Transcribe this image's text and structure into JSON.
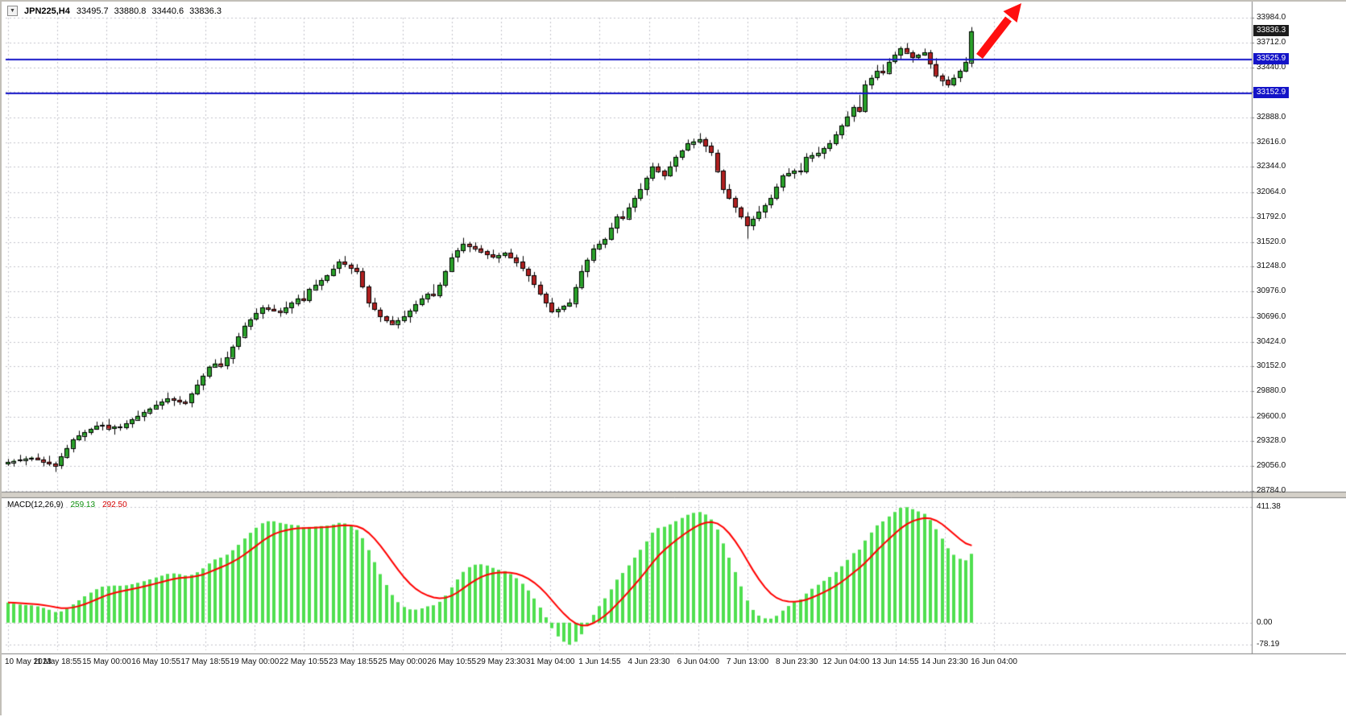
{
  "symbol_info": {
    "dropdown_icon": "▼",
    "symbol": "JPN225,H4",
    "open": "33495.7",
    "high": "33880.8",
    "low": "33440.6",
    "close": "33836.3"
  },
  "indicator_info": {
    "label": "MACD(12,26,9)",
    "main_value": "259.13",
    "signal_value": "292.50"
  },
  "price_axis": {
    "badges": [
      {
        "label": "33836.3",
        "price": 33836.3,
        "bg": "#1c1c1c",
        "name": "current-price-badge"
      },
      {
        "label": "33525.9",
        "price": 33525.9,
        "bg": "#1414c8",
        "name": "resistance-price-badge"
      },
      {
        "label": "33152.9",
        "price": 33152.9,
        "bg": "#1414c8",
        "name": "support-price-badge"
      }
    ]
  },
  "colors": {
    "bull": "#2aa12a",
    "bear": "#b02020",
    "wick": "#000000",
    "grid": "#c4c4cc",
    "hline": "#1414c8",
    "macd_bar": "#4fdf4f",
    "macd_signal": "#ff0000",
    "arrow": "#ff0f0f",
    "separator": "#d4d0c8",
    "border": "#808080"
  },
  "chart_data": {
    "type": "candlestick",
    "symbol": "JPN225",
    "timeframe": "H4",
    "title": "JPN225 H4 with MACD(12,26,9)",
    "current_ohlc": {
      "open": 33495.7,
      "high": 33880.8,
      "low": 33440.6,
      "close": 33836.3
    },
    "y_range": [
      28784,
      33984
    ],
    "y_ticks": [
      33984,
      33712,
      33440,
      33168,
      32888,
      32616,
      32344,
      32064,
      31792,
      31520,
      31248,
      30976,
      30696,
      30424,
      30152,
      29880,
      29600,
      29328,
      29056,
      28784
    ],
    "x_labels": [
      "10 May 2023",
      "11 May 18:55",
      "15 May 00:00",
      "16 May 10:55",
      "17 May 18:55",
      "19 May 00:00",
      "22 May 10:55",
      "23 May 18:55",
      "25 May 00:00",
      "26 May 10:55",
      "29 May 23:30",
      "31 May 04:00",
      "1 Jun 14:55",
      "4 Jun 23:30",
      "6 Jun 04:00",
      "7 Jun 13:00",
      "8 Jun 23:30",
      "12 Jun 04:00",
      "13 Jun 14:55",
      "14 Jun 23:30",
      "16 Jun 04:00"
    ],
    "hlines": [
      {
        "price": 33525.9,
        "color": "#1414c8"
      },
      {
        "price": 33152.9,
        "color": "#1414c8"
      }
    ],
    "ohlc": [
      [
        29080,
        29135,
        29058,
        29100
      ],
      [
        29100,
        29133,
        29052,
        29115
      ],
      [
        29115,
        29180,
        29100,
        29125
      ],
      [
        29125,
        29165,
        29065,
        29140
      ],
      [
        29140,
        29162,
        29110,
        29150
      ],
      [
        29150,
        29195,
        29120,
        29130
      ],
      [
        29130,
        29160,
        29053,
        29105
      ],
      [
        29105,
        29170,
        29057,
        29085
      ],
      [
        29085,
        29105,
        28992,
        29060
      ],
      [
        29060,
        29200,
        29025,
        29160
      ],
      [
        29160,
        29290,
        29138,
        29255
      ],
      [
        29255,
        29368,
        29207,
        29350
      ],
      [
        29350,
        29445,
        29335,
        29390
      ],
      [
        29390,
        29455,
        29330,
        29430
      ],
      [
        29430,
        29477,
        29400,
        29465
      ],
      [
        29465,
        29545,
        29455,
        29500
      ],
      [
        29500,
        29540,
        29448,
        29510
      ],
      [
        29510,
        29575,
        29442,
        29470
      ],
      [
        29470,
        29510,
        29402,
        29490
      ],
      [
        29490,
        29520,
        29445,
        29480
      ],
      [
        29480,
        29560,
        29458,
        29525
      ],
      [
        29525,
        29588,
        29477,
        29570
      ],
      [
        29570,
        29665,
        29555,
        29610
      ],
      [
        29610,
        29675,
        29550,
        29650
      ],
      [
        29650,
        29702,
        29620,
        29690
      ],
      [
        29690,
        29775,
        29680,
        29730
      ],
      [
        29730,
        29795,
        29678,
        29765
      ],
      [
        29765,
        29865,
        29737,
        29800
      ],
      [
        29800,
        29820,
        29717,
        29785
      ],
      [
        29785,
        29825,
        29730,
        29765
      ],
      [
        29765,
        29785,
        29728,
        29750
      ],
      [
        29750,
        29868,
        29702,
        29850
      ],
      [
        29850,
        30005,
        29835,
        29950
      ],
      [
        29950,
        30075,
        29890,
        30050
      ],
      [
        30050,
        30162,
        30020,
        30150
      ],
      [
        30150,
        30230,
        30140,
        30185
      ],
      [
        30185,
        30245,
        30133,
        30160
      ],
      [
        30160,
        30315,
        30120,
        30250
      ],
      [
        30250,
        30390,
        30182,
        30370
      ],
      [
        30370,
        30520,
        30335,
        30480
      ],
      [
        30480,
        30635,
        30458,
        30600
      ],
      [
        30600,
        30688,
        30552,
        30670
      ],
      [
        30670,
        30790,
        30655,
        30735
      ],
      [
        30735,
        30825,
        30675,
        30800
      ],
      [
        30800,
        30832,
        30755,
        30785
      ],
      [
        30785,
        30830,
        30755,
        30765
      ],
      [
        30765,
        30795,
        30698,
        30750
      ],
      [
        30750,
        30865,
        30722,
        30800
      ],
      [
        30800,
        30870,
        30732,
        30850
      ],
      [
        30850,
        30940,
        30815,
        30900
      ],
      [
        30900,
        30985,
        30855,
        30880
      ],
      [
        30880,
        31018,
        30852,
        31000
      ],
      [
        31000,
        31105,
        30985,
        31050
      ],
      [
        31050,
        31125,
        30990,
        31100
      ],
      [
        31100,
        31162,
        31070,
        31150
      ],
      [
        31150,
        31270,
        31140,
        31225
      ],
      [
        31225,
        31330,
        31173,
        31300
      ],
      [
        31300,
        31365,
        31242,
        31270
      ],
      [
        31270,
        31290,
        31167,
        31235
      ],
      [
        31235,
        31275,
        31165,
        31200
      ],
      [
        31200,
        31235,
        31008,
        31030
      ],
      [
        31030,
        31048,
        30802,
        30850
      ],
      [
        30850,
        30905,
        30760,
        30775
      ],
      [
        30775,
        30800,
        30640,
        30700
      ],
      [
        30700,
        30712,
        30630,
        30660
      ],
      [
        30660,
        30705,
        30610,
        30620
      ],
      [
        30620,
        30690,
        30568,
        30660
      ],
      [
        30660,
        30765,
        30632,
        30700
      ],
      [
        30700,
        30785,
        30632,
        30765
      ],
      [
        30765,
        30875,
        30730,
        30835
      ],
      [
        30835,
        30935,
        30813,
        30900
      ],
      [
        30900,
        30968,
        30852,
        30950
      ],
      [
        30950,
        31055,
        30915,
        30935
      ],
      [
        30935,
        31075,
        30905,
        31050
      ],
      [
        31050,
        31212,
        31020,
        31200
      ],
      [
        31200,
        31395,
        31190,
        31350
      ],
      [
        31350,
        31455,
        31298,
        31425
      ],
      [
        31425,
        31565,
        31397,
        31500
      ],
      [
        31500,
        31520,
        31407,
        31475
      ],
      [
        31475,
        31515,
        31415,
        31450
      ],
      [
        31450,
        31485,
        31393,
        31415
      ],
      [
        31415,
        31433,
        31332,
        31380
      ],
      [
        31380,
        31435,
        31335,
        31350
      ],
      [
        31350,
        31400,
        31290,
        31375
      ],
      [
        31375,
        31412,
        31345,
        31400
      ],
      [
        31400,
        31445,
        31340,
        31350
      ],
      [
        31350,
        31380,
        31248,
        31300
      ],
      [
        31300,
        31365,
        31197,
        31225
      ],
      [
        31225,
        31245,
        31082,
        31150
      ],
      [
        31150,
        31190,
        31015,
        31050
      ],
      [
        31050,
        31085,
        30928,
        30950
      ],
      [
        30950,
        30968,
        30802,
        30850
      ],
      [
        30850,
        30905,
        30735,
        30750
      ],
      [
        30750,
        30805,
        30690,
        30780
      ],
      [
        30780,
        30827,
        30750,
        30815
      ],
      [
        30815,
        30895,
        30805,
        30850
      ],
      [
        30850,
        31055,
        30798,
        31025
      ],
      [
        31025,
        31265,
        30997,
        31200
      ],
      [
        31200,
        31345,
        31132,
        31325
      ],
      [
        31325,
        31490,
        31290,
        31450
      ],
      [
        31450,
        31535,
        31428,
        31500
      ],
      [
        31500,
        31568,
        31452,
        31550
      ],
      [
        31550,
        31730,
        31535,
        31675
      ],
      [
        31675,
        31825,
        31615,
        31800
      ],
      [
        31800,
        31862,
        31755,
        31780
      ],
      [
        31780,
        31945,
        31760,
        31900
      ],
      [
        31900,
        32030,
        31848,
        32000
      ],
      [
        32000,
        32165,
        31972,
        32100
      ],
      [
        32100,
        32245,
        32032,
        32225
      ],
      [
        32225,
        32390,
        32190,
        32350
      ],
      [
        32350,
        32385,
        32278,
        32300
      ],
      [
        32300,
        32318,
        32202,
        32250
      ],
      [
        32250,
        32405,
        32235,
        32350
      ],
      [
        32350,
        32475,
        32290,
        32450
      ],
      [
        32450,
        32537,
        32420,
        32525
      ],
      [
        32525,
        32645,
        32515,
        32600
      ],
      [
        32600,
        32655,
        32548,
        32625
      ],
      [
        32625,
        32715,
        32597,
        32650
      ],
      [
        32650,
        32670,
        32507,
        32575
      ],
      [
        32575,
        32615,
        32465,
        32500
      ],
      [
        32500,
        32535,
        32278,
        32300
      ],
      [
        32300,
        32318,
        32052,
        32100
      ],
      [
        32100,
        32155,
        31985,
        32000
      ],
      [
        32000,
        32025,
        31840,
        31900
      ],
      [
        31900,
        31912,
        31770,
        31800
      ],
      [
        31800,
        31845,
        31555,
        31700
      ],
      [
        31700,
        31805,
        31648,
        31775
      ],
      [
        31775,
        31915,
        31747,
        31850
      ],
      [
        31850,
        31945,
        31782,
        31925
      ],
      [
        31925,
        32040,
        31890,
        32000
      ],
      [
        32000,
        32160,
        31978,
        32125
      ],
      [
        32125,
        32268,
        32077,
        32250
      ],
      [
        32250,
        32330,
        32235,
        32275
      ],
      [
        32275,
        32325,
        32215,
        32300
      ],
      [
        32300,
        32387,
        32255,
        32290
      ],
      [
        32290,
        32495,
        32270,
        32450
      ],
      [
        32450,
        32505,
        32398,
        32475
      ],
      [
        32475,
        32565,
        32447,
        32500
      ],
      [
        32500,
        32570,
        32432,
        32550
      ],
      [
        32550,
        32640,
        32515,
        32600
      ],
      [
        32600,
        32735,
        32578,
        32700
      ],
      [
        32700,
        32818,
        32652,
        32800
      ],
      [
        32800,
        32955,
        32785,
        32900
      ],
      [
        32900,
        33025,
        32840,
        33000
      ],
      [
        33000,
        33137,
        32940,
        32960
      ],
      [
        32960,
        33295,
        32940,
        33250
      ],
      [
        33250,
        33355,
        33198,
        33325
      ],
      [
        33325,
        33465,
        33297,
        33400
      ],
      [
        33400,
        33470,
        33352,
        33380
      ],
      [
        33380,
        33540,
        33360,
        33500
      ],
      [
        33500,
        33610,
        33478,
        33575
      ],
      [
        33575,
        33668,
        33527,
        33650
      ],
      [
        33650,
        33705,
        33585,
        33600
      ],
      [
        33600,
        33625,
        33490,
        33550
      ],
      [
        33550,
        33587,
        33520,
        33575
      ],
      [
        33575,
        33645,
        33565,
        33600
      ],
      [
        33600,
        33630,
        33423,
        33475
      ],
      [
        33475,
        33540,
        33322,
        33350
      ],
      [
        33350,
        33370,
        33232,
        33300
      ],
      [
        33300,
        33340,
        33215,
        33250
      ],
      [
        33250,
        33360,
        33228,
        33325
      ],
      [
        33325,
        33418,
        33277,
        33400
      ],
      [
        33400,
        33550,
        33385,
        33495.7
      ],
      [
        33495.7,
        33880.8,
        33440.6,
        33836.3
      ]
    ],
    "indicator": {
      "type": "macd",
      "label": "MACD(12,26,9)",
      "params": "12,26,9",
      "main": 259.13,
      "signal": 292.5,
      "axis_max": 411.38,
      "axis_zero": 0.0,
      "axis_min": -78.19
    }
  }
}
